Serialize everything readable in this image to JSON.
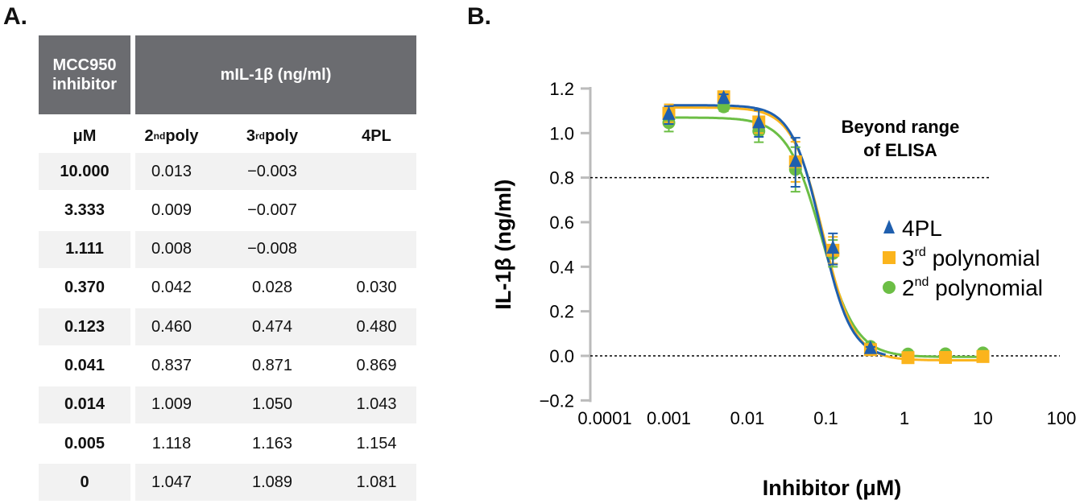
{
  "panel_a_label": "A.",
  "panel_b_label": "B.",
  "table": {
    "header_col1": "MCC950 inhibitor",
    "header_group": "mIL-1β (ng/ml)",
    "sub_headers": [
      {
        "base": "μM",
        "sup": ""
      },
      {
        "base": "2",
        "sup": "nd",
        "rest": " poly"
      },
      {
        "base": "3",
        "sup": "rd",
        "rest": " poly"
      },
      {
        "base": "4PL",
        "sup": ""
      }
    ],
    "rows": [
      [
        "10.000",
        "0.013",
        "−0.003",
        ""
      ],
      [
        "3.333",
        "0.009",
        "−0.007",
        ""
      ],
      [
        "1.111",
        "0.008",
        "−0.008",
        ""
      ],
      [
        "0.370",
        "0.042",
        "0.028",
        "0.030"
      ],
      [
        "0.123",
        "0.460",
        "0.474",
        "0.480"
      ],
      [
        "0.041",
        "0.837",
        "0.871",
        "0.869"
      ],
      [
        "0.014",
        "1.009",
        "1.050",
        "1.043"
      ],
      [
        "0.005",
        "1.118",
        "1.163",
        "1.154"
      ],
      [
        "0",
        "1.047",
        "1.089",
        "1.081"
      ]
    ]
  },
  "chart_data": {
    "type": "scatter",
    "xlabel": "Inhibitor (μM)",
    "ylabel": "IL-1β (ng/ml)",
    "x_scale": "log",
    "xlim": [
      0.0001,
      100
    ],
    "ylim": [
      -0.2,
      1.2
    ],
    "x_ticks": [
      "0.0001",
      "0.001",
      "0.01",
      "0.1",
      "1",
      "10",
      "100"
    ],
    "y_ticks": [
      "−0.2",
      "0.0",
      "0.2",
      "0.4",
      "0.6",
      "0.8",
      "1.0",
      "1.2"
    ],
    "annotation": "Beyond range of ELISA",
    "annotation_lines": [
      "Beyond range",
      "of ELISA"
    ],
    "reference_lines": [
      0.8,
      0.0
    ],
    "legend_position": "right",
    "series": [
      {
        "name": "4PL",
        "legend": {
          "base": "4PL",
          "sup": "",
          "rest": ""
        },
        "marker": "triangle",
        "color": "#1f5fae",
        "x": [
          0.001,
          0.005,
          0.014,
          0.041,
          0.123,
          0.37
        ],
        "y": [
          1.081,
          1.154,
          1.043,
          0.869,
          0.48,
          0.03
        ],
        "error": [
          0.04,
          0.02,
          0.06,
          0.11,
          0.07,
          0.01
        ]
      },
      {
        "name": "3rd polynomial",
        "legend": {
          "base": "3",
          "sup": "rd",
          "rest": " polynomial"
        },
        "marker": "square",
        "color": "#fbb41c",
        "x": [
          0.001,
          0.005,
          0.014,
          0.041,
          0.123,
          0.37,
          1.111,
          3.333,
          10
        ],
        "y": [
          1.089,
          1.163,
          1.05,
          0.871,
          0.474,
          0.028,
          -0.008,
          -0.007,
          -0.003
        ],
        "error": [
          0.04,
          0.02,
          0.05,
          0.09,
          0.06,
          0.01,
          0.01,
          0.01,
          0.01
        ]
      },
      {
        "name": "2nd polynomial",
        "legend": {
          "base": "2",
          "sup": "nd",
          "rest": " polynomial"
        },
        "marker": "circle",
        "color": "#6cbe45",
        "x": [
          0.001,
          0.005,
          0.014,
          0.041,
          0.123,
          0.37,
          1.111,
          3.333,
          10
        ],
        "y": [
          1.047,
          1.118,
          1.009,
          0.837,
          0.46,
          0.042,
          0.008,
          0.009,
          0.013
        ],
        "error": [
          0.04,
          0.02,
          0.05,
          0.1,
          0.06,
          0.01,
          0.01,
          0.01,
          0.01
        ]
      }
    ]
  }
}
